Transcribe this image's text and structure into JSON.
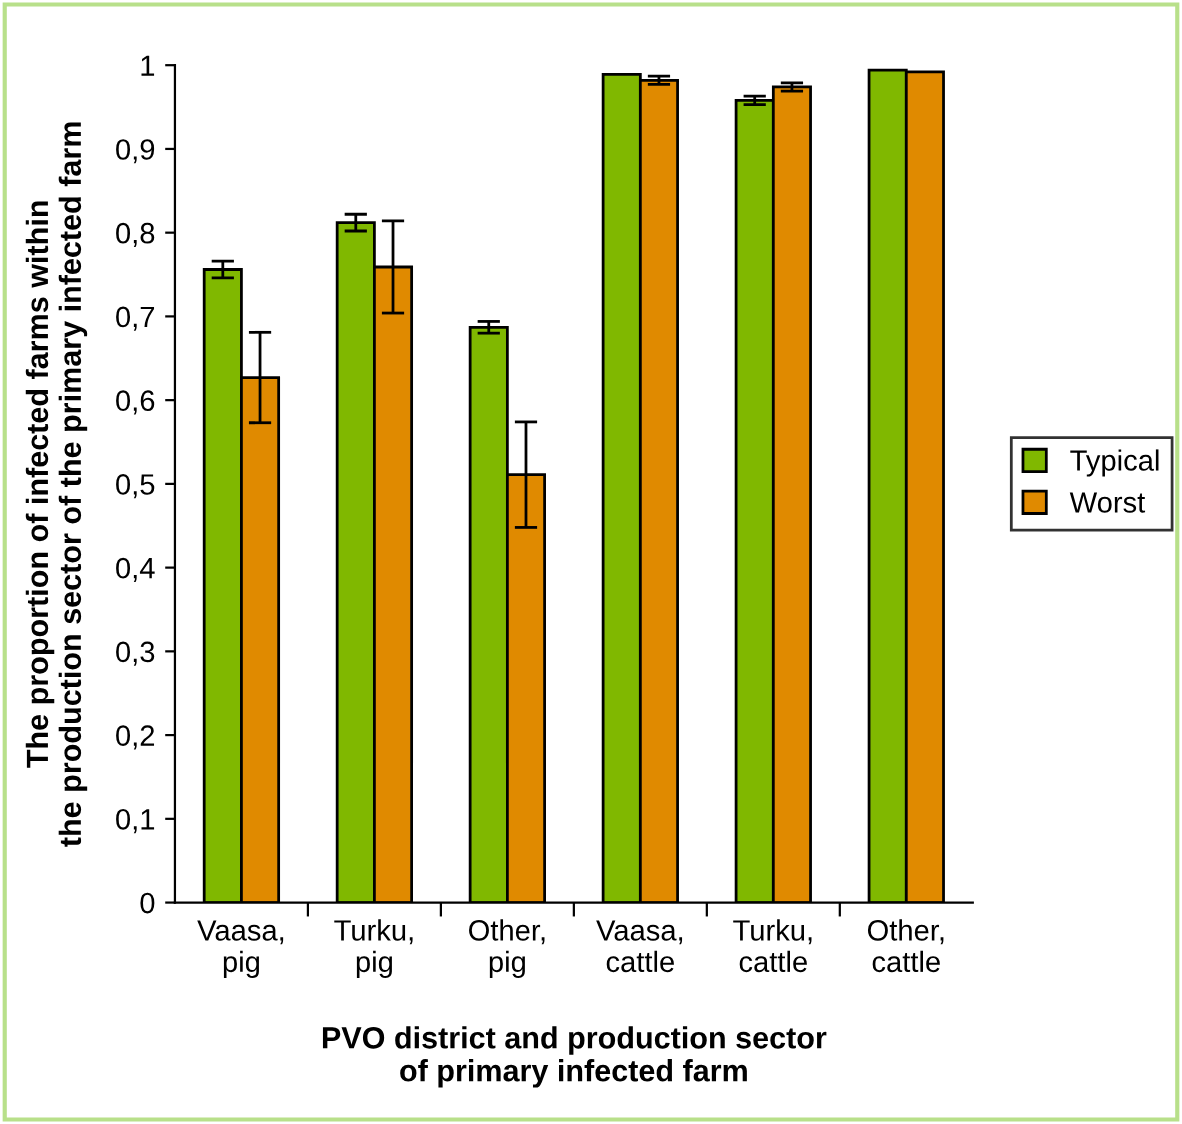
{
  "chart_data": {
    "type": "bar",
    "xlabel": "PVO district and production sector\nof primary infected farm",
    "ylabel": "The proportion of infected farms within\nthe production sector of the primary infected farm",
    "categories": [
      "Vaasa,\npig",
      "Turku,\npig",
      "Other,\npig",
      "Vaasa,\ncattle",
      "Turku,\ncattle",
      "Other,\ncattle"
    ],
    "series": [
      {
        "name": "Typical",
        "color": "#80b800",
        "values": [
          0.756,
          0.812,
          0.687,
          0.989,
          0.958,
          0.994
        ],
        "errors": [
          0.01,
          0.01,
          0.007,
          null,
          0.005,
          null
        ]
      },
      {
        "name": "Worst",
        "color": "#e08a00",
        "values": [
          0.627,
          0.759,
          0.511,
          0.982,
          0.974,
          0.992
        ],
        "errors": [
          0.054,
          0.055,
          0.063,
          0.005,
          0.005,
          null
        ]
      }
    ],
    "ylim": [
      0,
      1
    ],
    "yticks": [
      0,
      {
        "value": 0.1,
        "label": "0,1"
      },
      {
        "value": 0.2,
        "label": "0,2"
      },
      {
        "value": 0.3,
        "label": "0,3"
      },
      {
        "value": 0.4,
        "label": "0,4"
      },
      {
        "value": 0.5,
        "label": "0,5"
      },
      {
        "value": 0.6,
        "label": "0,6"
      },
      {
        "value": 0.7,
        "label": "0,7"
      },
      {
        "value": 0.8,
        "label": "0,8"
      },
      {
        "value": 0.9,
        "label": "0,9"
      },
      1
    ],
    "grid": false,
    "legend": "right"
  }
}
